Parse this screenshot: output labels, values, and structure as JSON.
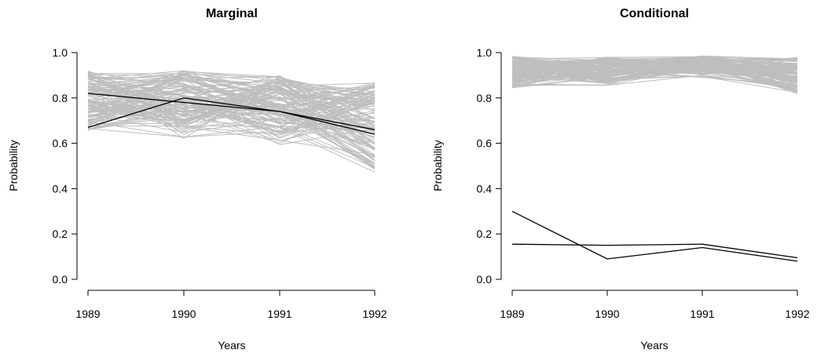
{
  "chart_data": [
    {
      "type": "line",
      "title": "Marginal",
      "xlabel": "Years",
      "ylabel": "Probability",
      "x": [
        1989,
        1990,
        1991,
        1992
      ],
      "ylim": [
        0,
        1
      ],
      "yticks": [
        "0.0",
        "0.2",
        "0.4",
        "0.6",
        "0.8",
        "1.0"
      ],
      "xticks": [
        "1989",
        "1990",
        "1991",
        "1992"
      ],
      "grid": false,
      "background_color": "#bebebe",
      "highlight_color": "#000000",
      "series": [
        {
          "values": [
            0.82,
            0.78,
            0.74,
            0.64
          ]
        },
        {
          "values": [
            0.67,
            0.8,
            0.74,
            0.66
          ]
        }
      ],
      "background_band": {
        "count": 120,
        "seed": 7,
        "y_min": [
          0.65,
          0.62,
          0.59,
          0.47
        ],
        "y_max": [
          0.92,
          0.92,
          0.9,
          0.87
        ]
      }
    },
    {
      "type": "line",
      "title": "Conditional",
      "xlabel": "Years",
      "ylabel": "Probability",
      "x": [
        1989,
        1990,
        1991,
        1992
      ],
      "ylim": [
        0,
        1
      ],
      "yticks": [
        "0.0",
        "0.2",
        "0.4",
        "0.6",
        "0.8",
        "1.0"
      ],
      "xticks": [
        "1989",
        "1990",
        "1991",
        "1992"
      ],
      "grid": false,
      "background_color": "#bebebe",
      "highlight_color": "#000000",
      "series": [
        {
          "values": [
            0.3,
            0.09,
            0.14,
            0.08
          ]
        },
        {
          "values": [
            0.155,
            0.15,
            0.155,
            0.095
          ]
        }
      ],
      "background_band": {
        "count": 120,
        "seed": 11,
        "y_min": [
          0.84,
          0.855,
          0.89,
          0.815
        ],
        "y_max": [
          0.985,
          0.98,
          0.985,
          0.98
        ]
      }
    }
  ]
}
